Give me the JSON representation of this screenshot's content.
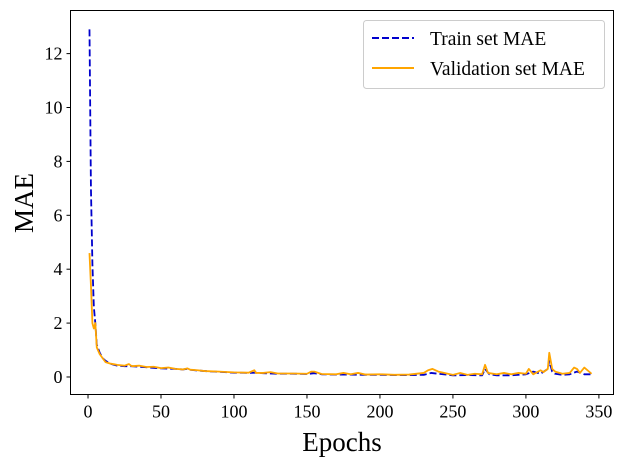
{
  "chart_data": {
    "type": "line",
    "title": "",
    "xlabel": "Epochs",
    "ylabel": "MAE",
    "xlim": [
      -12,
      360
    ],
    "ylim": [
      -0.65,
      13.6
    ],
    "xticks": [
      0,
      50,
      100,
      150,
      200,
      250,
      300,
      350
    ],
    "yticks": [
      0,
      2,
      4,
      6,
      8,
      10,
      12
    ],
    "grid": false,
    "legend_position": "top-right",
    "series": [
      {
        "name": "Train set MAE",
        "color": "#0000cc",
        "style": "dashed",
        "x": [
          1,
          2,
          3,
          4,
          5,
          6,
          8,
          10,
          12,
          15,
          18,
          20,
          25,
          30,
          35,
          40,
          45,
          50,
          55,
          60,
          65,
          68,
          70,
          75,
          80,
          90,
          100,
          110,
          115,
          120,
          130,
          140,
          150,
          155,
          160,
          170,
          180,
          190,
          200,
          210,
          220,
          230,
          235,
          240,
          250,
          260,
          270,
          272,
          275,
          280,
          290,
          300,
          305,
          310,
          315,
          316,
          318,
          320,
          325,
          330,
          335,
          338,
          340,
          345
        ],
        "y": [
          12.9,
          7.0,
          4.2,
          2.6,
          2.0,
          1.2,
          0.9,
          0.7,
          0.6,
          0.5,
          0.45,
          0.42,
          0.4,
          0.4,
          0.38,
          0.36,
          0.34,
          0.32,
          0.31,
          0.3,
          0.28,
          0.3,
          0.27,
          0.24,
          0.22,
          0.19,
          0.16,
          0.15,
          0.16,
          0.14,
          0.12,
          0.12,
          0.11,
          0.14,
          0.1,
          0.09,
          0.09,
          0.08,
          0.08,
          0.07,
          0.07,
          0.08,
          0.15,
          0.12,
          0.06,
          0.07,
          0.06,
          0.3,
          0.1,
          0.06,
          0.06,
          0.1,
          0.2,
          0.12,
          0.3,
          0.6,
          0.2,
          0.12,
          0.08,
          0.1,
          0.2,
          0.15,
          0.1,
          0.1
        ]
      },
      {
        "name": "Validation set MAE",
        "color": "#ffa500",
        "style": "solid",
        "x": [
          1,
          2,
          3,
          4,
          5,
          6,
          8,
          10,
          12,
          15,
          18,
          20,
          25,
          28,
          30,
          35,
          40,
          45,
          50,
          55,
          60,
          65,
          68,
          70,
          75,
          80,
          90,
          100,
          110,
          114,
          115,
          120,
          125,
          130,
          140,
          150,
          153,
          155,
          160,
          170,
          175,
          180,
          185,
          190,
          200,
          210,
          220,
          230,
          233,
          236,
          240,
          250,
          255,
          260,
          265,
          270,
          272,
          274,
          280,
          285,
          290,
          295,
          300,
          302,
          305,
          310,
          312,
          315,
          316,
          318,
          320,
          325,
          330,
          333,
          335,
          337,
          340,
          345
        ],
        "y": [
          4.6,
          3.4,
          2.0,
          1.8,
          2.0,
          1.1,
          0.85,
          0.7,
          0.55,
          0.5,
          0.47,
          0.45,
          0.42,
          0.48,
          0.4,
          0.42,
          0.37,
          0.38,
          0.33,
          0.35,
          0.3,
          0.28,
          0.32,
          0.27,
          0.25,
          0.22,
          0.2,
          0.17,
          0.16,
          0.25,
          0.15,
          0.15,
          0.18,
          0.13,
          0.13,
          0.12,
          0.2,
          0.2,
          0.11,
          0.1,
          0.15,
          0.1,
          0.15,
          0.09,
          0.1,
          0.08,
          0.09,
          0.15,
          0.25,
          0.3,
          0.2,
          0.08,
          0.15,
          0.08,
          0.12,
          0.1,
          0.45,
          0.15,
          0.1,
          0.15,
          0.1,
          0.15,
          0.12,
          0.3,
          0.1,
          0.25,
          0.18,
          0.3,
          0.9,
          0.3,
          0.2,
          0.12,
          0.15,
          0.35,
          0.3,
          0.15,
          0.35,
          0.12
        ]
      }
    ]
  }
}
